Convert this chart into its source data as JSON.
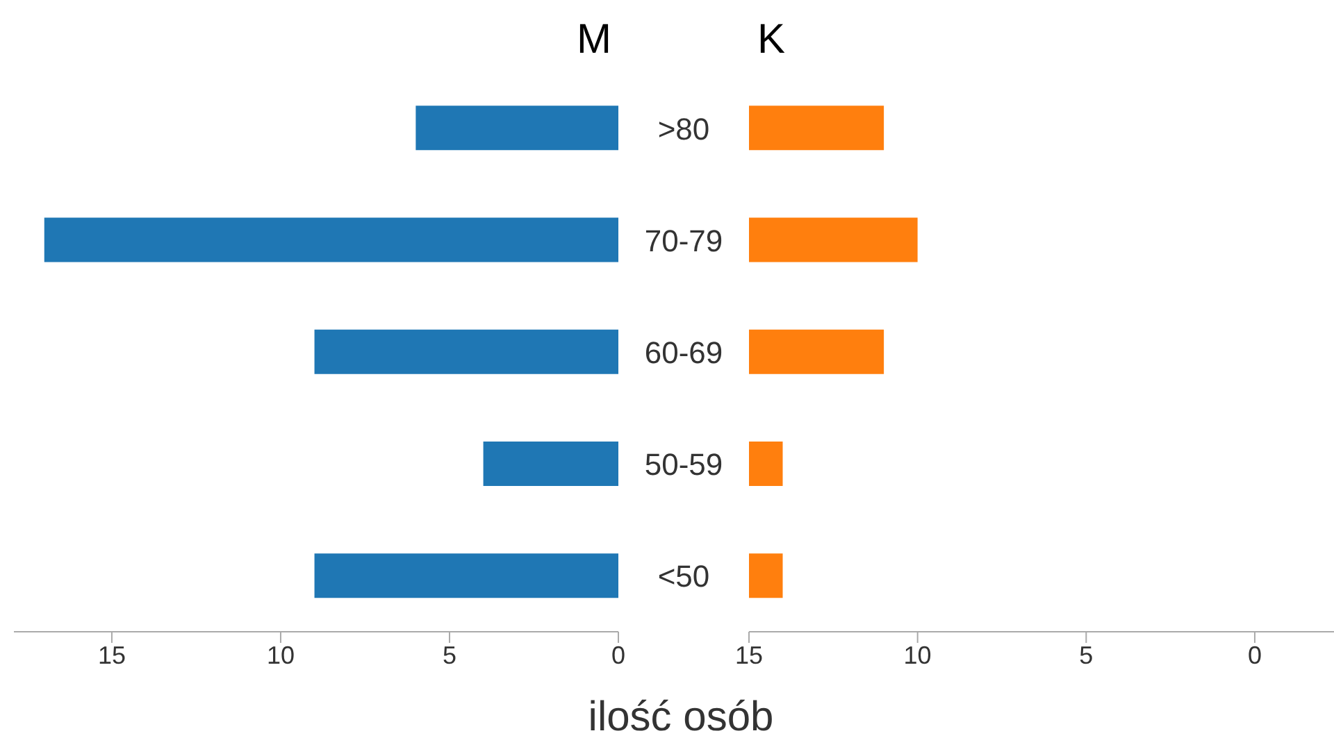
{
  "chart_data": [
    {
      "type": "bar",
      "orientation": "horizontal",
      "title": "M",
      "xlabel": "ilość osób",
      "categories": [
        ">80",
        "70-79",
        "60-69",
        "50-59",
        "<50"
      ],
      "values": [
        6,
        17,
        9,
        4,
        9
      ],
      "color": "#1f77b4",
      "xlim": [
        17.9,
        0
      ],
      "xticks": [
        15,
        10,
        5,
        0
      ]
    },
    {
      "type": "bar",
      "orientation": "horizontal",
      "title": "K",
      "base": [
        15,
        15,
        15,
        15,
        15
      ],
      "values": [
        -4,
        -5,
        -4,
        -1,
        -1
      ],
      "color": "#ff7f0e",
      "xlim": [
        15,
        -2.35
      ],
      "xticks": [
        15,
        10,
        5,
        0
      ],
      "tick_labels": "x"
    }
  ]
}
